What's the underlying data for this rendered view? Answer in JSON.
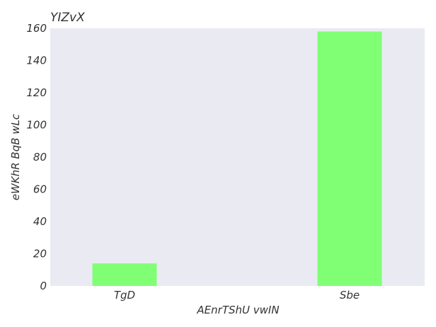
{
  "chart_data": {
    "type": "bar",
    "title": "YIZvX",
    "xlabel": "AEnrTShU vwIN",
    "ylabel": "eWKhR BqB wLc",
    "categories": [
      "TgD",
      "Sbe"
    ],
    "values": [
      14,
      158
    ],
    "ylim": [
      0,
      160
    ],
    "yticks": [
      0,
      20,
      40,
      60,
      80,
      100,
      120,
      140,
      160
    ],
    "grid": false,
    "legend": "none",
    "colors": {
      "bar": "#80ff75",
      "plot_background": "#eaeaf2",
      "text": "#333333"
    }
  }
}
